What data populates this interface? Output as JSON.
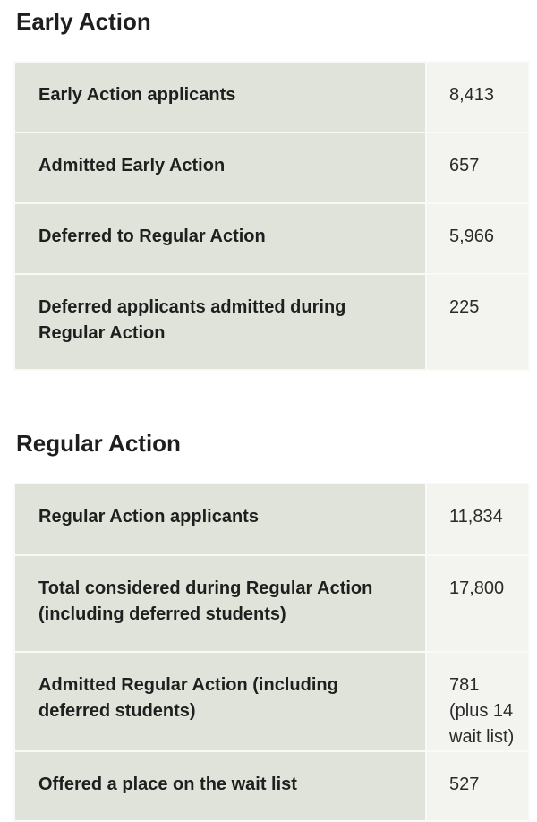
{
  "early_action": {
    "title": "Early Action",
    "rows": [
      {
        "label": "Early Action applicants",
        "value": "8,413"
      },
      {
        "label": "Admitted Early Action",
        "value": "657"
      },
      {
        "label": "Deferred to Regular Action",
        "value": "5,966"
      },
      {
        "label": "Deferred applicants admitted during Regular Action",
        "value": "225"
      }
    ]
  },
  "regular_action": {
    "title": "Regular Action",
    "rows": [
      {
        "label": "Regular Action applicants",
        "value": "11,834"
      },
      {
        "label": "Total considered during Regular Action (including deferred students)",
        "value": "17,800"
      },
      {
        "label": "Admitted Regular Action (including deferred students)",
        "value": "781 (plus 14 wait list)"
      },
      {
        "label": "Offered a place on the wait list",
        "value": "527"
      }
    ]
  },
  "colors": {
    "label_cell_bg": "#e0e3d9",
    "value_cell_bg": "#f3f3f0",
    "cell_border": "#f9f9f6",
    "heading_text": "#1e1e1e"
  }
}
